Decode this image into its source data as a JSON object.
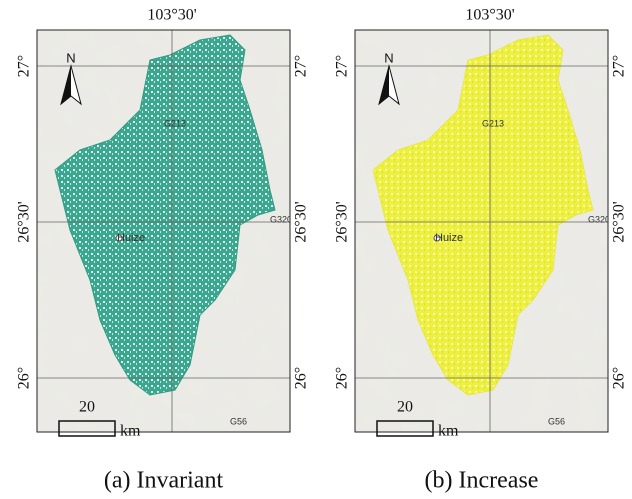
{
  "panels": [
    {
      "caption": "(a) Invariant",
      "top_label": "103°30'",
      "left_labels": [
        "27°",
        "26°30'",
        "26°"
      ],
      "right_labels": [
        "27°",
        "26°30'",
        "26°"
      ],
      "north": "N",
      "roads": [
        "G213",
        "G320",
        "G56"
      ],
      "town": "Huize",
      "scale_value": "20",
      "scale_unit": "km"
    },
    {
      "caption": "(b) Increase",
      "top_label": "103°30'",
      "left_labels": [
        "27°",
        "26°30'",
        "26°"
      ],
      "right_labels": [
        "27°",
        "26°30'",
        "26°"
      ],
      "north": "N",
      "roads": [
        "G213",
        "G320",
        "G56"
      ],
      "town": "Huize",
      "scale_value": "20",
      "scale_unit": "km"
    }
  ]
}
